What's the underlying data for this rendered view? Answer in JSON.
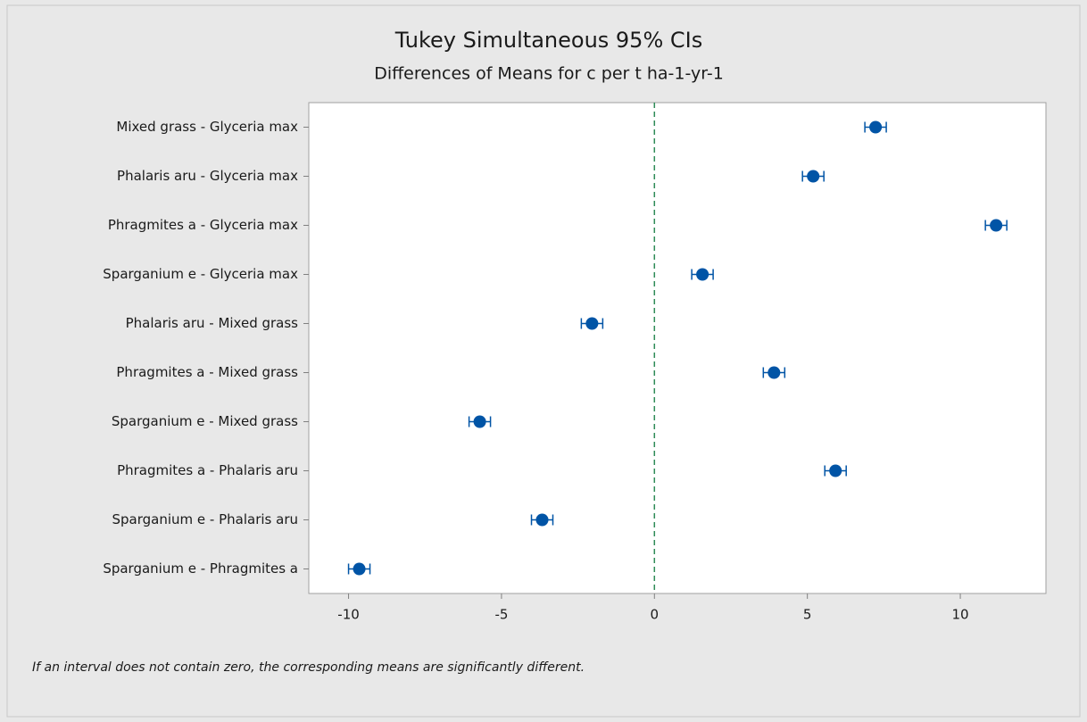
{
  "chart_data": {
    "type": "interval",
    "title": "Tukey Simultaneous 95% CIs",
    "subtitle": "Differences of Means for c per t ha-1-yr-1",
    "footnote": "If an interval does not contain zero, the corresponding means are significantly different.",
    "categories": [
      "Mixed grass - Glyceria max",
      "Phalaris aru - Glyceria max",
      "Phragmites a - Glyceria max",
      "Sparganium e - Glyceria max",
      "Phalaris aru - Mixed grass",
      "Phragmites a - Mixed grass",
      "Sparganium e - Mixed grass",
      "Phragmites a - Phalaris aru",
      "Sparganium e - Phalaris aru",
      "Sparganium e - Phragmites a"
    ],
    "values": [
      7.23,
      5.19,
      11.17,
      1.57,
      -2.04,
      3.91,
      -5.71,
      5.92,
      -3.67,
      -9.65
    ],
    "errors": [
      0.35,
      0.35,
      0.35,
      0.35,
      0.35,
      0.35,
      0.35,
      0.35,
      0.35,
      0.35
    ],
    "color": "#0054a6",
    "reference_line": 0,
    "reference_color": "#2e8b57",
    "xlim": [
      -11.3,
      12.8
    ],
    "xticks": [
      -10,
      -5,
      0,
      5,
      10
    ]
  }
}
